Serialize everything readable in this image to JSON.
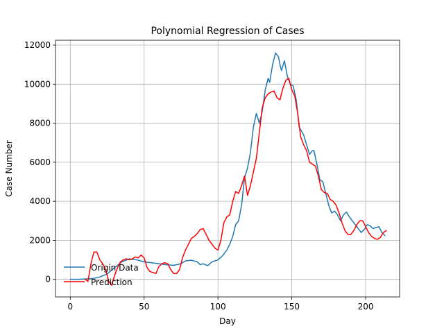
{
  "chart_data": {
    "type": "line",
    "title": "Polynomial Regression of Cases",
    "xlabel": "Day",
    "ylabel": "Case Number",
    "xlim": [
      -10,
      223
    ],
    "ylim": [
      -900,
      12250
    ],
    "xticks": [
      0,
      50,
      100,
      150,
      200
    ],
    "yticks": [
      0,
      2000,
      4000,
      6000,
      8000,
      10000,
      12000
    ],
    "grid": true,
    "legend_position": "lower-left",
    "series": [
      {
        "name": "Origin Data",
        "color": "#1f77b4",
        "points": [
          [
            0,
            0
          ],
          [
            5,
            0
          ],
          [
            10,
            20
          ],
          [
            15,
            40
          ],
          [
            20,
            120
          ],
          [
            25,
            280
          ],
          [
            30,
            600
          ],
          [
            35,
            900
          ],
          [
            40,
            1050
          ],
          [
            45,
            1000
          ],
          [
            50,
            900
          ],
          [
            55,
            850
          ],
          [
            60,
            800
          ],
          [
            65,
            750
          ],
          [
            70,
            720
          ],
          [
            75,
            800
          ],
          [
            78,
            950
          ],
          [
            82,
            980
          ],
          [
            86,
            900
          ],
          [
            88,
            750
          ],
          [
            90,
            800
          ],
          [
            93,
            700
          ],
          [
            96,
            900
          ],
          [
            100,
            1000
          ],
          [
            103,
            1200
          ],
          [
            106,
            1500
          ],
          [
            108,
            1800
          ],
          [
            110,
            2200
          ],
          [
            112,
            2800
          ],
          [
            114,
            3000
          ],
          [
            116,
            3800
          ],
          [
            118,
            5200
          ],
          [
            120,
            5700
          ],
          [
            122,
            6500
          ],
          [
            124,
            7800
          ],
          [
            126,
            8500
          ],
          [
            128,
            8000
          ],
          [
            130,
            8600
          ],
          [
            132,
            9700
          ],
          [
            134,
            10300
          ],
          [
            135,
            10100
          ],
          [
            137,
            11000
          ],
          [
            139,
            11600
          ],
          [
            141,
            11400
          ],
          [
            142,
            11000
          ],
          [
            143,
            10700
          ],
          [
            145,
            11200
          ],
          [
            147,
            10400
          ],
          [
            149,
            10000
          ],
          [
            151,
            9900
          ],
          [
            153,
            9200
          ],
          [
            155,
            7800
          ],
          [
            158,
            7400
          ],
          [
            160,
            6900
          ],
          [
            162,
            6400
          ],
          [
            164,
            6600
          ],
          [
            165,
            6600
          ],
          [
            167,
            5900
          ],
          [
            169,
            5100
          ],
          [
            171,
            5000
          ],
          [
            173,
            4400
          ],
          [
            175,
            3800
          ],
          [
            177,
            3400
          ],
          [
            179,
            3500
          ],
          [
            181,
            3300
          ],
          [
            183,
            3000
          ],
          [
            185,
            3300
          ],
          [
            187,
            3450
          ],
          [
            189,
            3200
          ],
          [
            191,
            3000
          ],
          [
            193,
            2800
          ],
          [
            195,
            2600
          ],
          [
            197,
            2400
          ],
          [
            199,
            2550
          ],
          [
            201,
            2800
          ],
          [
            203,
            2750
          ],
          [
            205,
            2600
          ],
          [
            207,
            2650
          ],
          [
            209,
            2700
          ],
          [
            211,
            2400
          ],
          [
            213,
            2250
          ]
        ]
      },
      {
        "name": "Prediction",
        "color": "#ff0000",
        "points": [
          [
            10,
            0
          ],
          [
            12,
            -100
          ],
          [
            14,
            800
          ],
          [
            16,
            1400
          ],
          [
            18,
            1400
          ],
          [
            20,
            1000
          ],
          [
            22,
            800
          ],
          [
            24,
            500
          ],
          [
            26,
            -100
          ],
          [
            28,
            -300
          ],
          [
            30,
            200
          ],
          [
            32,
            600
          ],
          [
            34,
            900
          ],
          [
            36,
            1000
          ],
          [
            38,
            1050
          ],
          [
            40,
            1000
          ],
          [
            42,
            1050
          ],
          [
            44,
            1150
          ],
          [
            46,
            1100
          ],
          [
            48,
            1250
          ],
          [
            50,
            1100
          ],
          [
            52,
            600
          ],
          [
            54,
            400
          ],
          [
            56,
            350
          ],
          [
            58,
            300
          ],
          [
            60,
            650
          ],
          [
            62,
            800
          ],
          [
            64,
            850
          ],
          [
            66,
            800
          ],
          [
            68,
            500
          ],
          [
            70,
            300
          ],
          [
            72,
            300
          ],
          [
            74,
            500
          ],
          [
            76,
            1100
          ],
          [
            78,
            1500
          ],
          [
            80,
            1800
          ],
          [
            82,
            2100
          ],
          [
            84,
            2200
          ],
          [
            86,
            2350
          ],
          [
            88,
            2550
          ],
          [
            90,
            2600
          ],
          [
            92,
            2300
          ],
          [
            94,
            2000
          ],
          [
            96,
            1800
          ],
          [
            98,
            1600
          ],
          [
            100,
            1500
          ],
          [
            102,
            2000
          ],
          [
            104,
            2900
          ],
          [
            106,
            3200
          ],
          [
            108,
            3300
          ],
          [
            110,
            4000
          ],
          [
            112,
            4500
          ],
          [
            114,
            4400
          ],
          [
            116,
            4800
          ],
          [
            118,
            5300
          ],
          [
            120,
            4300
          ],
          [
            122,
            4800
          ],
          [
            124,
            5500
          ],
          [
            126,
            6200
          ],
          [
            128,
            7500
          ],
          [
            130,
            8800
          ],
          [
            132,
            9300
          ],
          [
            134,
            9500
          ],
          [
            136,
            9600
          ],
          [
            138,
            9650
          ],
          [
            140,
            9300
          ],
          [
            142,
            9200
          ],
          [
            144,
            9800
          ],
          [
            146,
            10200
          ],
          [
            148,
            10300
          ],
          [
            150,
            9700
          ],
          [
            152,
            9400
          ],
          [
            154,
            8500
          ],
          [
            156,
            7300
          ],
          [
            158,
            6900
          ],
          [
            160,
            6600
          ],
          [
            162,
            6000
          ],
          [
            164,
            5900
          ],
          [
            166,
            5800
          ],
          [
            168,
            5300
          ],
          [
            170,
            4600
          ],
          [
            172,
            4450
          ],
          [
            174,
            4400
          ],
          [
            176,
            4100
          ],
          [
            178,
            4000
          ],
          [
            180,
            3800
          ],
          [
            182,
            3400
          ],
          [
            184,
            2900
          ],
          [
            186,
            2500
          ],
          [
            188,
            2300
          ],
          [
            190,
            2300
          ],
          [
            192,
            2500
          ],
          [
            194,
            2800
          ],
          [
            196,
            3000
          ],
          [
            198,
            3000
          ],
          [
            200,
            2700
          ],
          [
            202,
            2400
          ],
          [
            204,
            2200
          ],
          [
            206,
            2100
          ],
          [
            208,
            2050
          ],
          [
            210,
            2150
          ],
          [
            212,
            2400
          ],
          [
            214,
            2500
          ]
        ]
      }
    ]
  }
}
